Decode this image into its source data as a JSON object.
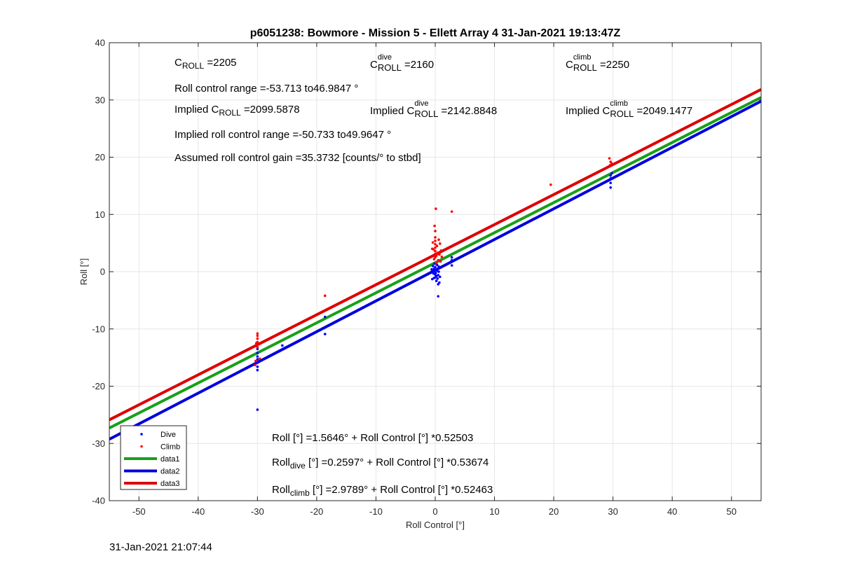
{
  "chart_data": {
    "type": "scatter",
    "title": "p6051238: Bowmore - Mission 5 - Ellett Array 4 31-Jan-2021 19:13:47Z",
    "xlabel": "Roll Control [°]",
    "ylabel": "Roll [°]",
    "xlim": [
      -55,
      55
    ],
    "ylim": [
      -40,
      40
    ],
    "xticks": [
      "-50",
      "-40",
      "-30",
      "-20",
      "-10",
      "0",
      "10",
      "20",
      "30",
      "40",
      "50"
    ],
    "yticks": [
      "-40",
      "-30",
      "-20",
      "-10",
      "0",
      "10",
      "20",
      "30",
      "40"
    ],
    "grid": true,
    "legend_position": "bottom-left",
    "series": [
      {
        "name": "Dive",
        "kind": "points",
        "color": "#0000ff",
        "points": [
          [
            -30,
            -13.5
          ],
          [
            -30,
            -14.2
          ],
          [
            -30,
            -14.8
          ],
          [
            -30,
            -15.3
          ],
          [
            -30,
            -15.9
          ],
          [
            -30,
            -16.6
          ],
          [
            -30,
            -17.2
          ],
          [
            -30,
            -24.1
          ],
          [
            -25.8,
            -12.9
          ],
          [
            -18.6,
            -10.9
          ],
          [
            -18.6,
            -7.9
          ],
          [
            0,
            -0.5
          ],
          [
            0,
            -1.0
          ],
          [
            0,
            0.3
          ],
          [
            0,
            0.8
          ],
          [
            0.1,
            -0.2
          ],
          [
            -0.2,
            0.5
          ],
          [
            0.2,
            -0.8
          ],
          [
            -0.3,
            -0.3
          ],
          [
            0.3,
            0.2
          ],
          [
            0.4,
            -1.2
          ],
          [
            -0.4,
            1.0
          ],
          [
            0.5,
            -0.6
          ],
          [
            -0.5,
            -1.3
          ],
          [
            0.6,
            0.0
          ],
          [
            -0.6,
            0.4
          ],
          [
            0.2,
            -1.6
          ],
          [
            0.5,
            -2.2
          ],
          [
            0.7,
            -1.9
          ],
          [
            0.5,
            -4.3
          ],
          [
            0.3,
            1.2
          ],
          [
            -0.1,
            1.4
          ],
          [
            0.8,
            -0.9
          ],
          [
            -0.2,
            -1.1
          ],
          [
            0.6,
            0.9
          ],
          [
            2.8,
            2.0
          ],
          [
            2.8,
            1.1
          ],
          [
            2.8,
            2.5
          ],
          [
            29.6,
            16.3
          ],
          [
            29.6,
            15.5
          ],
          [
            29.6,
            14.7
          ],
          [
            29.8,
            17.2
          ],
          [
            29.6,
            16.8
          ]
        ]
      },
      {
        "name": "Climb",
        "kind": "points",
        "color": "#ff0000",
        "points": [
          [
            -30,
            -10.8
          ],
          [
            -30,
            -11.2
          ],
          [
            -30,
            -11.7
          ],
          [
            -30,
            -12.3
          ],
          [
            -30,
            -12.8
          ],
          [
            -30,
            -13.2
          ],
          [
            -30.2,
            -12.5
          ],
          [
            -30.3,
            -15.6
          ],
          [
            -30.4,
            -16.3
          ],
          [
            -29.6,
            -15.2
          ],
          [
            -18.6,
            -4.2
          ],
          [
            0,
            2.5
          ],
          [
            0,
            3.1
          ],
          [
            0,
            3.6
          ],
          [
            0,
            4.2
          ],
          [
            0,
            4.8
          ],
          [
            0,
            5.4
          ],
          [
            0,
            6.0
          ],
          [
            0,
            7.1
          ],
          [
            0.1,
            11.0
          ],
          [
            -0.2,
            2.2
          ],
          [
            0.2,
            2.8
          ],
          [
            -0.3,
            3.9
          ],
          [
            0.3,
            4.5
          ],
          [
            -0.4,
            5.1
          ],
          [
            0.4,
            3.3
          ],
          [
            0.5,
            2.0
          ],
          [
            -0.5,
            4.0
          ],
          [
            0.6,
            5.6
          ],
          [
            0.7,
            3.0
          ],
          [
            0.8,
            4.9
          ],
          [
            1.0,
            3.7
          ],
          [
            1.1,
            2.6
          ],
          [
            0.9,
            1.8
          ],
          [
            0.2,
            1.5
          ],
          [
            -0.1,
            8.0
          ],
          [
            2.8,
            10.5
          ],
          [
            19.5,
            15.2
          ],
          [
            29.4,
            19.8
          ],
          [
            29.6,
            19.2
          ],
          [
            29.5,
            18.6
          ],
          [
            29.8,
            18.9
          ]
        ]
      },
      {
        "name": "data1",
        "kind": "line",
        "color": "#18a018",
        "intercept": 1.5646,
        "slope": 0.52503
      },
      {
        "name": "data2",
        "kind": "line",
        "color": "#0000dd",
        "intercept": 0.2597,
        "slope": 0.53674
      },
      {
        "name": "data3",
        "kind": "line",
        "color": "#dd0000",
        "intercept": 2.9789,
        "slope": 0.52463
      }
    ]
  },
  "annotations": {
    "c_roll_base": "C",
    "c_roll_sub": "ROLL",
    "c_roll_val": " =2205",
    "c_dive_base": "C",
    "c_dive_sup": "dive",
    "c_dive_sub": "ROLL",
    "c_dive_val": " =2160",
    "c_climb_base": "C",
    "c_climb_sup": "climb",
    "c_climb_sub": "ROLL",
    "c_climb_val": " =2250",
    "range": "Roll control range =-53.713 to46.9847 °",
    "implied_c_pre": "Implied C",
    "implied_c_sub": "ROLL",
    "implied_c_val": " =2099.5878",
    "implied_dive_pre": "Implied C",
    "implied_dive_sup": "dive",
    "implied_dive_sub": "ROLL",
    "implied_dive_val": " =2142.8848",
    "implied_climb_pre": "Implied C",
    "implied_climb_sup": "climb",
    "implied_climb_sub": "ROLL",
    "implied_climb_val": " =2049.1477",
    "implied_range": "Implied roll control range =-50.733 to49.9647 °",
    "gain": "Assumed roll control gain =35.3732 [counts/° to stbd]",
    "eq_all": "Roll [°] =1.5646° + Roll Control [°] *0.52503",
    "eq_dive_pre": "Roll",
    "eq_dive_sub": "dive",
    "eq_dive_post": " [°] =0.2597° + Roll Control [°] *0.53674",
    "eq_climb_pre": "Roll",
    "eq_climb_sub": "climb",
    "eq_climb_post": " [°] =2.9789° + Roll Control [°] *0.52463"
  },
  "timestamp": "31-Jan-2021 21:07:44"
}
